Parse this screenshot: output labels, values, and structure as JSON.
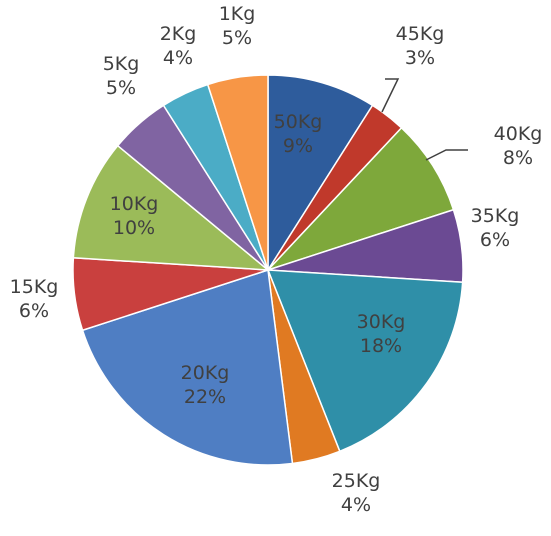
{
  "chart_data": {
    "type": "pie",
    "title": "",
    "slices": [
      {
        "label": "50Kg",
        "percent_label": "9%",
        "value": 9,
        "color": "#2e5c9c"
      },
      {
        "label": "45Kg",
        "percent_label": "3%",
        "value": 3,
        "color": "#c0392b"
      },
      {
        "label": "40Kg",
        "percent_label": "8%",
        "value": 8,
        "color": "#7ea83b"
      },
      {
        "label": "35Kg",
        "percent_label": "6%",
        "value": 6,
        "color": "#6b4a93"
      },
      {
        "label": "30Kg",
        "percent_label": "18%",
        "value": 18,
        "color": "#2f8fa8"
      },
      {
        "label": "25Kg",
        "percent_label": "4%",
        "value": 4,
        "color": "#e07a22"
      },
      {
        "label": "20Kg",
        "percent_label": "22%",
        "value": 22,
        "color": "#4f7ec3"
      },
      {
        "label": "15Kg",
        "percent_label": "6%",
        "value": 6,
        "color": "#c9403e"
      },
      {
        "label": "10Kg",
        "percent_label": "10%",
        "value": 10,
        "color": "#9bbb59"
      },
      {
        "label": "5Kg",
        "percent_label": "5%",
        "value": 5,
        "color": "#8064a2"
      },
      {
        "label": "2Kg",
        "percent_label": "4%",
        "value": 4,
        "color": "#4bacc6"
      },
      {
        "label": "1Kg",
        "percent_label": "5%",
        "value": 5,
        "color": "#f79646"
      }
    ]
  }
}
